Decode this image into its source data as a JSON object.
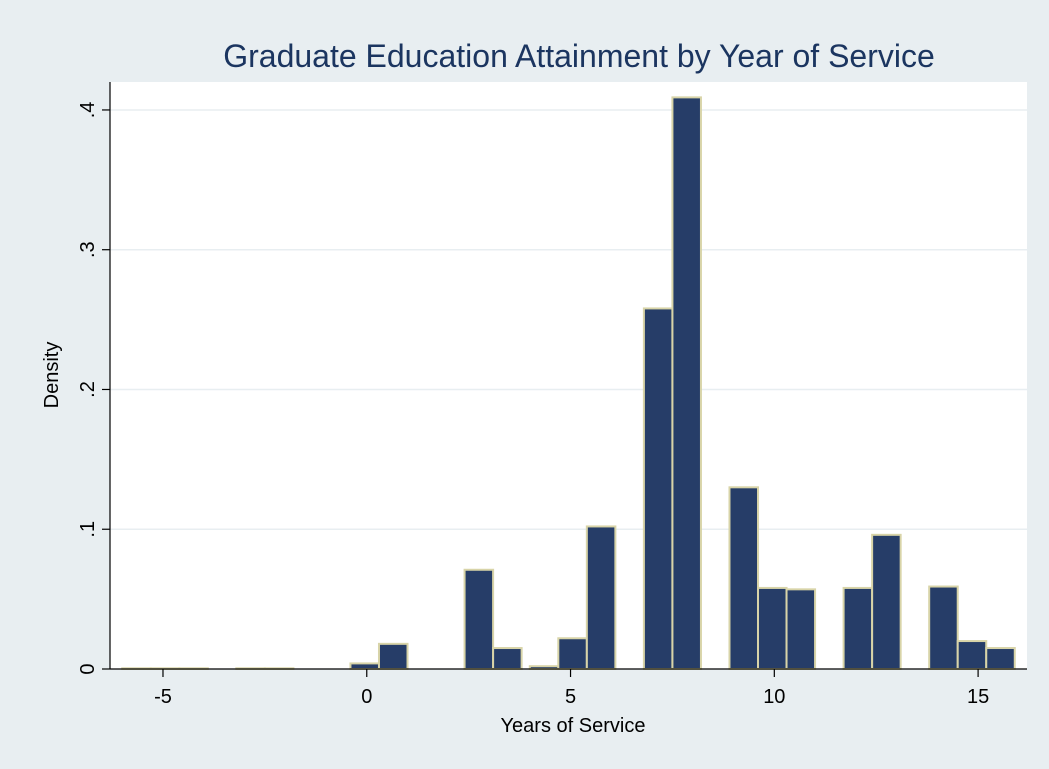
{
  "chart_data": {
    "type": "bar",
    "title": "Graduate Education Attainment by Year of Service",
    "xlabel": "Years of Service",
    "ylabel": "Density",
    "xlim": [
      -6.3,
      16.2
    ],
    "ylim": [
      0,
      0.42
    ],
    "x_ticks": [
      -5,
      0,
      5,
      10,
      15
    ],
    "y_ticks": [
      0,
      0.1,
      0.2,
      0.3,
      0.4
    ],
    "x_tick_labels": [
      "-5",
      "0",
      "5",
      "10",
      "15"
    ],
    "y_tick_labels": [
      "0",
      ".1",
      ".2",
      ".3",
      ".4"
    ],
    "grid": "horizontal",
    "series": [
      {
        "bin_width": 0.7,
        "x_start": [
          -6.0,
          -5.3,
          -4.6,
          -3.2,
          -2.5,
          -0.4,
          0.3,
          2.4,
          3.1,
          4.0,
          4.7,
          5.4,
          6.8,
          7.5,
          8.9,
          9.6,
          10.3,
          11.7,
          12.4,
          13.8,
          14.5,
          15.2
        ],
        "values": [
          0.0005,
          0.0005,
          0.0005,
          0.0005,
          0.0005,
          0.004,
          0.018,
          0.071,
          0.015,
          0.002,
          0.022,
          0.102,
          0.258,
          0.409,
          0.13,
          0.058,
          0.057,
          0.058,
          0.096,
          0.059,
          0.02,
          0.015
        ]
      }
    ],
    "colors": {
      "outer_background": "#e8eef1",
      "plot_background": "#ffffff",
      "bar_fill": "#263d68",
      "bar_edge": "#d8d4a8",
      "title": "#1b3560",
      "grid": "#e8eef1"
    }
  }
}
